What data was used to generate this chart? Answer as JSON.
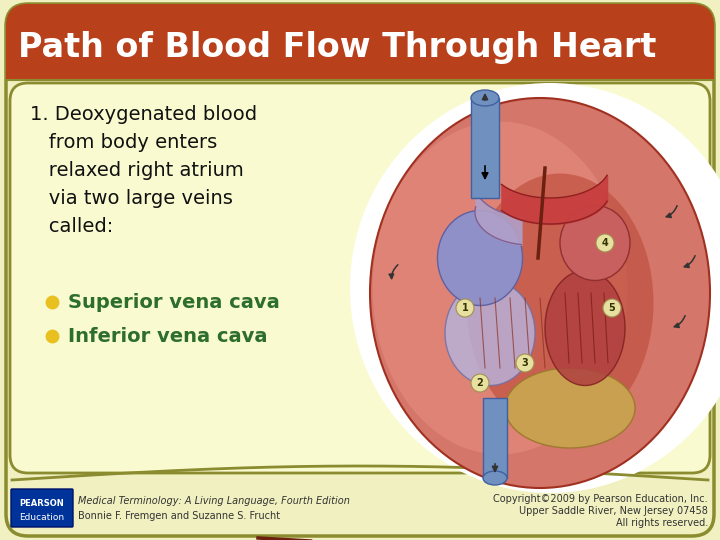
{
  "title": "Path of Blood Flow Through Heart",
  "title_bg_color": "#b8401a",
  "title_text_color": "#ffffff",
  "outer_bg_color": "#f0f0c0",
  "content_box_color": "#fafad0",
  "content_box_border": "#8b8b30",
  "bullet1": "Superior vena cava",
  "bullet2": "Inferior vena cava",
  "bullet_color": "#2d6e2d",
  "bullet_dot_color": "#e8c020",
  "main_text_color": "#111111",
  "footer_left_line1": "Medical Terminology: A Living Language, Fourth Edition",
  "footer_left_line2": "Bonnie F. Fremgen and Suzanne S. Frucht",
  "footer_right_line1": "Copyright©2009 by Pearson Education, Inc.",
  "footer_right_line2": "Upper Saddle River, New Jersey 07458",
  "footer_right_line3": "All rights reserved.",
  "footer_text_color": "#333333",
  "pearson_box_color": "#003399",
  "pearson_label": "PEARSON",
  "education_label": "Education"
}
